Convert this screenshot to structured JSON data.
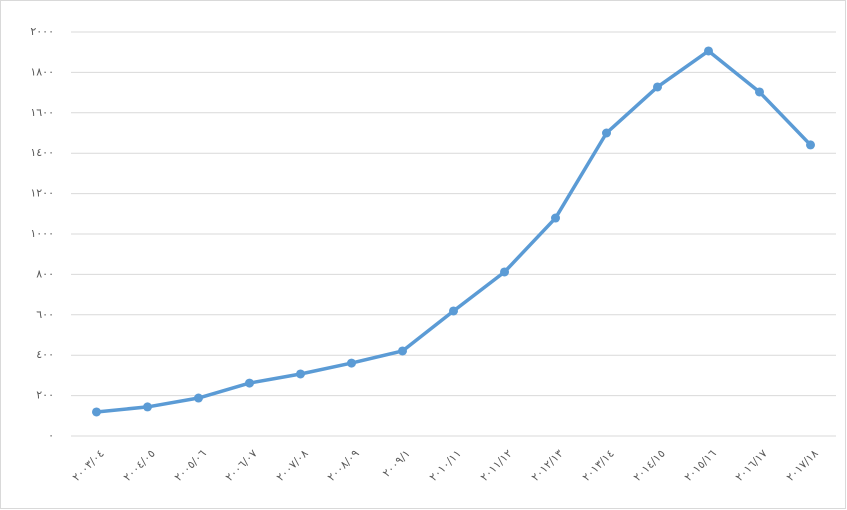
{
  "chart_data": {
    "type": "line",
    "categories": [
      "٢٠٠٣/٠٤",
      "٢٠٠٤/٠٥",
      "٢٠٠٥/٠٦",
      "٢٠٠٦/٠٧",
      "٢٠٠٧/٠٨",
      "٢٠٠٨/٠٩",
      "٢٠٠٩/١",
      "٢٠١٠/١١",
      "٢٠١١/١٢",
      "٢٠١٢/١٣",
      "٢٠١٣/١٤",
      "٢٠١٤/١٥",
      "٢٠١٥/١٦",
      "٢٠١٦/١٧",
      "٢٠١٧/١٨"
    ],
    "series": [
      {
        "color": "#5b9bd5",
        "values": [
          119,
          144,
          188,
          262,
          307,
          361,
          421,
          619,
          812,
          1079,
          1500,
          1728,
          1906,
          1703,
          1441
        ]
      }
    ],
    "ylim": [
      0,
      2000
    ],
    "yticks": [
      {
        "value": 0,
        "label": "٠"
      },
      {
        "value": 200,
        "label": "٢٠٠"
      },
      {
        "value": 400,
        "label": "٤٠٠"
      },
      {
        "value": 600,
        "label": "٦٠٠"
      },
      {
        "value": 800,
        "label": "٨٠٠"
      },
      {
        "value": 1000,
        "label": "١٠٠٠"
      },
      {
        "value": 1200,
        "label": "١٢٠٠"
      },
      {
        "value": 1400,
        "label": "١٤٠٠"
      },
      {
        "value": 1600,
        "label": "١٦٠٠"
      },
      {
        "value": 1800,
        "label": "١٨٠٠"
      },
      {
        "value": 2000,
        "label": "٢٠٠٠"
      }
    ],
    "grid": true
  }
}
